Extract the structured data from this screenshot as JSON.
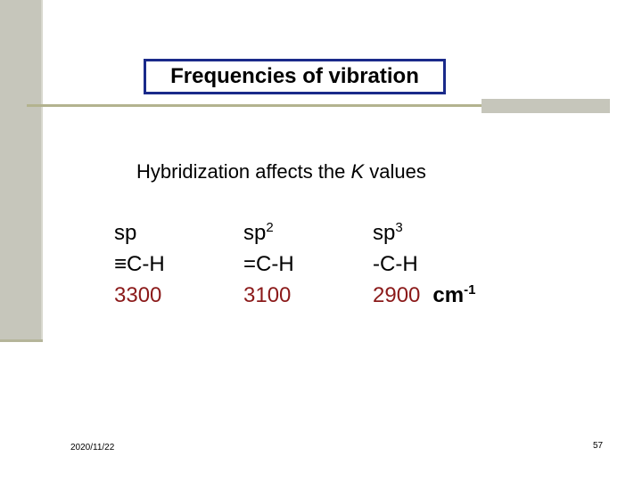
{
  "slide": {
    "title": "Frequencies of vibration",
    "subtitle_prefix": "Hybridization affects the ",
    "subtitle_var": "K",
    "subtitle_suffix": " values",
    "columns": [
      {
        "hyb": "sp",
        "hyb_sup": "",
        "bond": "≡C-H",
        "wavenumber": "3300"
      },
      {
        "hyb": "sp",
        "hyb_sup": "2",
        "bond": "=C-H",
        "wavenumber": "3100"
      },
      {
        "hyb": "sp",
        "hyb_sup": "3",
        "bond": "-C-H",
        "wavenumber": "2900"
      }
    ],
    "unit_base": "cm",
    "unit_sup": "-1",
    "footer_date": "2020/11/22",
    "page_number": "57"
  },
  "colors": {
    "accent_bar": "#c6c6bb",
    "divider": "#b3b38f",
    "title_border": "#1a2a8a",
    "wavenumber_text": "#8b1a1a"
  }
}
